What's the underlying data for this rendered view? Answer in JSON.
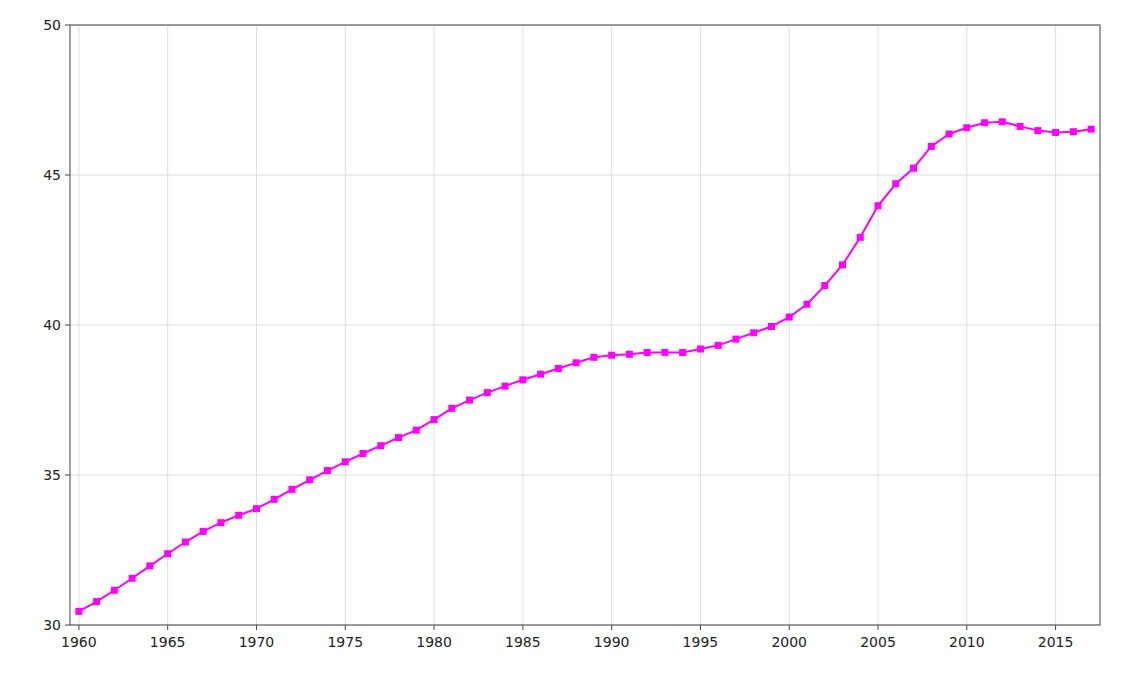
{
  "chart_data": {
    "type": "line",
    "x": [
      1960,
      1961,
      1962,
      1963,
      1964,
      1965,
      1966,
      1967,
      1968,
      1969,
      1970,
      1971,
      1972,
      1973,
      1974,
      1975,
      1976,
      1977,
      1978,
      1979,
      1980,
      1981,
      1982,
      1983,
      1984,
      1985,
      1986,
      1987,
      1988,
      1989,
      1990,
      1991,
      1992,
      1993,
      1994,
      1995,
      1996,
      1997,
      1998,
      1999,
      2000,
      2001,
      2002,
      2003,
      2004,
      2005,
      2006,
      2007,
      2008,
      2009,
      2010,
      2011,
      2012,
      2013,
      2014,
      2015,
      2016,
      2017
    ],
    "series": [
      {
        "color": "#FF00FF",
        "marker": "square",
        "values": [
          30.455,
          30.779,
          31.158,
          31.558,
          31.971,
          32.375,
          32.766,
          33.12,
          33.411,
          33.657,
          33.876,
          34.19,
          34.522,
          34.841,
          35.147,
          35.44,
          35.716,
          35.978,
          36.247,
          36.496,
          36.846,
          37.222,
          37.497,
          37.746,
          37.964,
          38.173,
          38.36,
          38.551,
          38.741,
          38.923,
          38.994,
          39.025,
          39.083,
          39.085,
          39.083,
          39.199,
          39.322,
          39.53,
          39.74,
          39.952,
          40.264,
          40.693,
          41.314,
          42.005,
          42.922,
          43.975,
          44.708,
          45.227,
          45.954,
          46.367,
          46.576,
          46.742,
          46.773,
          46.62,
          46.48,
          46.418,
          46.444,
          46.528
        ]
      }
    ],
    "xlim": [
      1959.5,
      2017.5
    ],
    "ylim": [
      30,
      50
    ],
    "xticks": [
      1960,
      1965,
      1970,
      1975,
      1980,
      1985,
      1990,
      1995,
      2000,
      2005,
      2010,
      2015
    ],
    "yticks": [
      30,
      35,
      40,
      45,
      50
    ],
    "grid": true
  }
}
